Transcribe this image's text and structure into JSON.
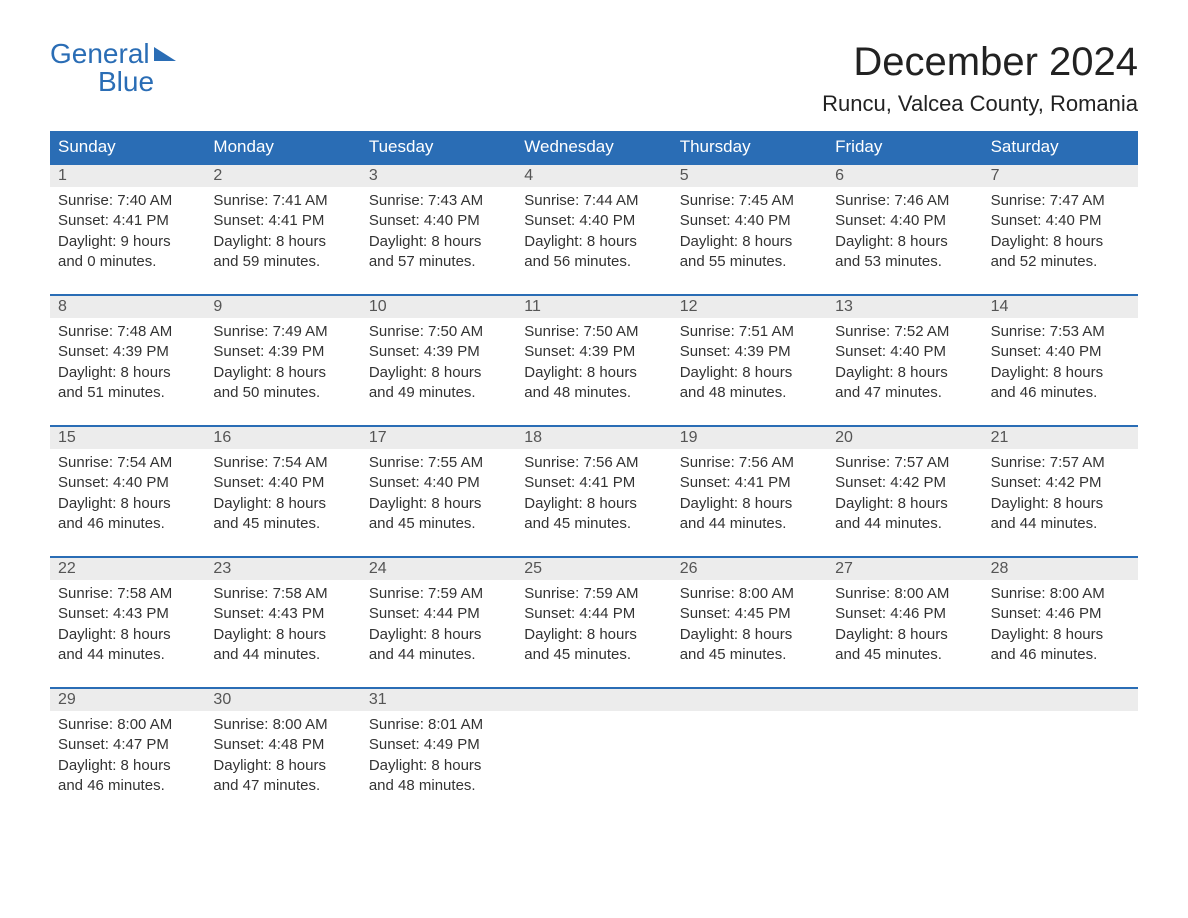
{
  "logo": {
    "line1": "General",
    "line2": "Blue"
  },
  "title": "December 2024",
  "location": "Runcu, Valcea County, Romania",
  "colors": {
    "header_bg": "#2a6db5",
    "header_text": "#ffffff",
    "row_sep": "#2a6db5",
    "daynum_bg": "#ececec",
    "body_text": "#333333",
    "page_bg": "#ffffff"
  },
  "typography": {
    "title_fontsize": 40,
    "location_fontsize": 22,
    "dayhead_fontsize": 17,
    "daynum_fontsize": 16,
    "cell_fontsize": 15,
    "font_family": "Arial"
  },
  "days_of_week": [
    "Sunday",
    "Monday",
    "Tuesday",
    "Wednesday",
    "Thursday",
    "Friday",
    "Saturday"
  ],
  "labels": {
    "sunrise": "Sunrise:",
    "sunset": "Sunset:",
    "daylight": "Daylight:"
  },
  "weeks": [
    [
      {
        "num": "1",
        "sunrise": "7:40 AM",
        "sunset": "4:41 PM",
        "daylight1": "9 hours",
        "daylight2": "and 0 minutes."
      },
      {
        "num": "2",
        "sunrise": "7:41 AM",
        "sunset": "4:41 PM",
        "daylight1": "8 hours",
        "daylight2": "and 59 minutes."
      },
      {
        "num": "3",
        "sunrise": "7:43 AM",
        "sunset": "4:40 PM",
        "daylight1": "8 hours",
        "daylight2": "and 57 minutes."
      },
      {
        "num": "4",
        "sunrise": "7:44 AM",
        "sunset": "4:40 PM",
        "daylight1": "8 hours",
        "daylight2": "and 56 minutes."
      },
      {
        "num": "5",
        "sunrise": "7:45 AM",
        "sunset": "4:40 PM",
        "daylight1": "8 hours",
        "daylight2": "and 55 minutes."
      },
      {
        "num": "6",
        "sunrise": "7:46 AM",
        "sunset": "4:40 PM",
        "daylight1": "8 hours",
        "daylight2": "and 53 minutes."
      },
      {
        "num": "7",
        "sunrise": "7:47 AM",
        "sunset": "4:40 PM",
        "daylight1": "8 hours",
        "daylight2": "and 52 minutes."
      }
    ],
    [
      {
        "num": "8",
        "sunrise": "7:48 AM",
        "sunset": "4:39 PM",
        "daylight1": "8 hours",
        "daylight2": "and 51 minutes."
      },
      {
        "num": "9",
        "sunrise": "7:49 AM",
        "sunset": "4:39 PM",
        "daylight1": "8 hours",
        "daylight2": "and 50 minutes."
      },
      {
        "num": "10",
        "sunrise": "7:50 AM",
        "sunset": "4:39 PM",
        "daylight1": "8 hours",
        "daylight2": "and 49 minutes."
      },
      {
        "num": "11",
        "sunrise": "7:50 AM",
        "sunset": "4:39 PM",
        "daylight1": "8 hours",
        "daylight2": "and 48 minutes."
      },
      {
        "num": "12",
        "sunrise": "7:51 AM",
        "sunset": "4:39 PM",
        "daylight1": "8 hours",
        "daylight2": "and 48 minutes."
      },
      {
        "num": "13",
        "sunrise": "7:52 AM",
        "sunset": "4:40 PM",
        "daylight1": "8 hours",
        "daylight2": "and 47 minutes."
      },
      {
        "num": "14",
        "sunrise": "7:53 AM",
        "sunset": "4:40 PM",
        "daylight1": "8 hours",
        "daylight2": "and 46 minutes."
      }
    ],
    [
      {
        "num": "15",
        "sunrise": "7:54 AM",
        "sunset": "4:40 PM",
        "daylight1": "8 hours",
        "daylight2": "and 46 minutes."
      },
      {
        "num": "16",
        "sunrise": "7:54 AM",
        "sunset": "4:40 PM",
        "daylight1": "8 hours",
        "daylight2": "and 45 minutes."
      },
      {
        "num": "17",
        "sunrise": "7:55 AM",
        "sunset": "4:40 PM",
        "daylight1": "8 hours",
        "daylight2": "and 45 minutes."
      },
      {
        "num": "18",
        "sunrise": "7:56 AM",
        "sunset": "4:41 PM",
        "daylight1": "8 hours",
        "daylight2": "and 45 minutes."
      },
      {
        "num": "19",
        "sunrise": "7:56 AM",
        "sunset": "4:41 PM",
        "daylight1": "8 hours",
        "daylight2": "and 44 minutes."
      },
      {
        "num": "20",
        "sunrise": "7:57 AM",
        "sunset": "4:42 PM",
        "daylight1": "8 hours",
        "daylight2": "and 44 minutes."
      },
      {
        "num": "21",
        "sunrise": "7:57 AM",
        "sunset": "4:42 PM",
        "daylight1": "8 hours",
        "daylight2": "and 44 minutes."
      }
    ],
    [
      {
        "num": "22",
        "sunrise": "7:58 AM",
        "sunset": "4:43 PM",
        "daylight1": "8 hours",
        "daylight2": "and 44 minutes."
      },
      {
        "num": "23",
        "sunrise": "7:58 AM",
        "sunset": "4:43 PM",
        "daylight1": "8 hours",
        "daylight2": "and 44 minutes."
      },
      {
        "num": "24",
        "sunrise": "7:59 AM",
        "sunset": "4:44 PM",
        "daylight1": "8 hours",
        "daylight2": "and 44 minutes."
      },
      {
        "num": "25",
        "sunrise": "7:59 AM",
        "sunset": "4:44 PM",
        "daylight1": "8 hours",
        "daylight2": "and 45 minutes."
      },
      {
        "num": "26",
        "sunrise": "8:00 AM",
        "sunset": "4:45 PM",
        "daylight1": "8 hours",
        "daylight2": "and 45 minutes."
      },
      {
        "num": "27",
        "sunrise": "8:00 AM",
        "sunset": "4:46 PM",
        "daylight1": "8 hours",
        "daylight2": "and 45 minutes."
      },
      {
        "num": "28",
        "sunrise": "8:00 AM",
        "sunset": "4:46 PM",
        "daylight1": "8 hours",
        "daylight2": "and 46 minutes."
      }
    ],
    [
      {
        "num": "29",
        "sunrise": "8:00 AM",
        "sunset": "4:47 PM",
        "daylight1": "8 hours",
        "daylight2": "and 46 minutes."
      },
      {
        "num": "30",
        "sunrise": "8:00 AM",
        "sunset": "4:48 PM",
        "daylight1": "8 hours",
        "daylight2": "and 47 minutes."
      },
      {
        "num": "31",
        "sunrise": "8:01 AM",
        "sunset": "4:49 PM",
        "daylight1": "8 hours",
        "daylight2": "and 48 minutes."
      },
      null,
      null,
      null,
      null
    ]
  ]
}
